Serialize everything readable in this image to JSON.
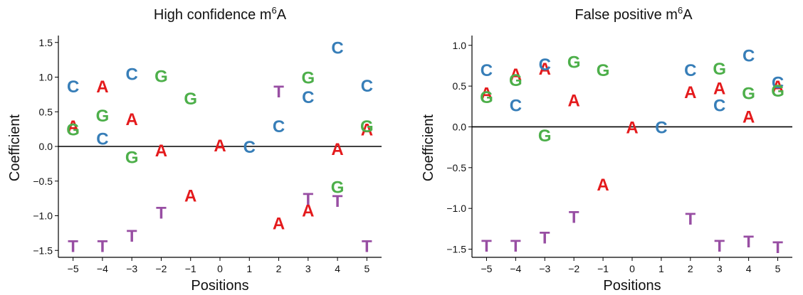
{
  "colors": {
    "A": "#E41A1C",
    "C": "#377EB8",
    "G": "#4DAF4A",
    "T": "#984EA3"
  },
  "chart_data": [
    {
      "type": "scatter",
      "title": "High confidence m",
      "title_superscript": "6",
      "title_suffix": "A",
      "xlabel": "Positions",
      "ylabel": "Coefficient",
      "xlim": [
        -5.5,
        5.5
      ],
      "ylim": [
        -1.6,
        1.6
      ],
      "x_ticks": [
        -5,
        -4,
        -3,
        -2,
        -1,
        0,
        1,
        2,
        3,
        4,
        5
      ],
      "x_tick_labels": [
        "−5",
        "−4",
        "−3",
        "−2",
        "−1",
        "0",
        "1",
        "2",
        "3",
        "4",
        "5"
      ],
      "y_ticks": [
        -1.5,
        -1.0,
        -0.5,
        0.0,
        0.5,
        1.0,
        1.5
      ],
      "y_tick_labels": [
        "−1.5",
        "−1.0",
        "−0.5",
        "0.0",
        "0.5",
        "1.0",
        "1.5"
      ],
      "reference_line_y": 0,
      "series": [
        {
          "name": "A",
          "x": [
            -5,
            -4,
            -3,
            -2,
            -1,
            0,
            2,
            3,
            4,
            5
          ],
          "y": [
            0.3,
            0.87,
            0.4,
            -0.05,
            -0.7,
            0.02,
            -1.1,
            -0.92,
            -0.03,
            0.25
          ]
        },
        {
          "name": "C",
          "x": [
            -5,
            -4,
            -3,
            1,
            2,
            3,
            4,
            5
          ],
          "y": [
            0.87,
            0.12,
            1.05,
            0.0,
            0.3,
            0.72,
            1.43,
            0.88
          ]
        },
        {
          "name": "G",
          "x": [
            -5,
            -4,
            -3,
            -2,
            -1,
            3,
            4,
            5
          ],
          "y": [
            0.25,
            0.45,
            -0.15,
            1.02,
            0.7,
            1.0,
            -0.58,
            0.3
          ]
        },
        {
          "name": "T",
          "x": [
            -5,
            -4,
            -3,
            -2,
            2,
            3,
            4,
            5
          ],
          "y": [
            -1.43,
            -1.43,
            -1.28,
            -0.95,
            0.8,
            -0.75,
            -0.78,
            -1.43
          ]
        }
      ]
    },
    {
      "type": "scatter",
      "title": "False positive m",
      "title_superscript": "6",
      "title_suffix": "A",
      "xlabel": "Positions",
      "ylabel": "Coefficient",
      "xlim": [
        -5.5,
        5.5
      ],
      "ylim": [
        -1.6,
        1.12
      ],
      "x_ticks": [
        -5,
        -4,
        -3,
        -2,
        -1,
        0,
        1,
        2,
        3,
        4,
        5
      ],
      "x_tick_labels": [
        "−5",
        "−4",
        "−3",
        "−2",
        "−1",
        "0",
        "1",
        "2",
        "3",
        "4",
        "5"
      ],
      "y_ticks": [
        -1.5,
        -1.0,
        -0.5,
        0.0,
        0.5,
        1.0
      ],
      "y_tick_labels": [
        "−1.5",
        "−1.0",
        "−0.5",
        "0.0",
        "0.5",
        "1.0"
      ],
      "reference_line_y": 0,
      "series": [
        {
          "name": "A",
          "x": [
            -5,
            -4,
            -3,
            -2,
            -1,
            0,
            2,
            3,
            4,
            5
          ],
          "y": [
            0.42,
            0.65,
            0.72,
            0.33,
            -0.7,
            0.0,
            0.43,
            0.48,
            0.13,
            0.5
          ]
        },
        {
          "name": "C",
          "x": [
            -5,
            -4,
            -3,
            1,
            2,
            3,
            4,
            5
          ],
          "y": [
            0.7,
            0.27,
            0.77,
            0.0,
            0.7,
            0.27,
            0.88,
            0.55
          ]
        },
        {
          "name": "G",
          "x": [
            -5,
            -4,
            -3,
            -2,
            -1,
            3,
            4,
            5
          ],
          "y": [
            0.37,
            0.58,
            -0.1,
            0.8,
            0.7,
            0.72,
            0.42,
            0.45
          ]
        },
        {
          "name": "T",
          "x": [
            -5,
            -4,
            -3,
            -2,
            2,
            3,
            4,
            5
          ],
          "y": [
            -1.45,
            -1.45,
            -1.35,
            -1.1,
            -1.12,
            -1.45,
            -1.4,
            -1.47
          ]
        }
      ]
    }
  ]
}
